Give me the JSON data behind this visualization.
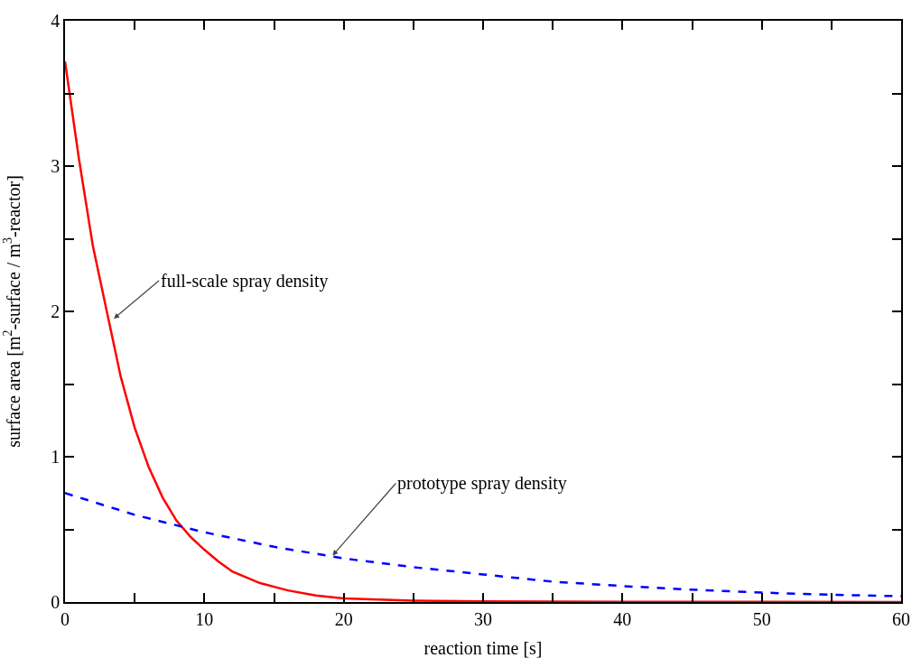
{
  "chart_data": {
    "type": "line",
    "xlabel": "reaction time [s]",
    "ylabel": "surface area [m$^{2}$-surface / m$^{3}$-reactor]",
    "xlim": [
      0,
      60
    ],
    "ylim": [
      0,
      4
    ],
    "xticks": [
      0,
      {
        "value": 5,
        "label": null
      },
      10,
      {
        "value": 15,
        "label": null
      },
      20,
      {
        "value": 25,
        "label": null
      },
      30,
      {
        "value": 35,
        "label": null
      },
      40,
      {
        "value": 45,
        "label": null
      },
      50,
      {
        "value": 55,
        "label": null
      },
      60
    ],
    "yticks": [
      0,
      {
        "value": 0.5,
        "label": null
      },
      1,
      {
        "value": 1.5,
        "label": null
      },
      2,
      {
        "value": 2.5,
        "label": null
      },
      3,
      {
        "value": 3.5,
        "label": null
      },
      4
    ],
    "grid": false,
    "marker": "none",
    "series": [
      {
        "color": "#ff0000",
        "line_style": "solid",
        "x": [
          0,
          1,
          2,
          3,
          4,
          5,
          6,
          7,
          8,
          9,
          10,
          11,
          12,
          14,
          16,
          18,
          20,
          25,
          30,
          40,
          50,
          60
        ],
        "values": [
          3.72,
          3.05,
          2.45,
          2.0,
          1.55,
          1.2,
          0.93,
          0.72,
          0.56,
          0.45,
          0.36,
          0.28,
          0.21,
          0.13,
          0.08,
          0.045,
          0.025,
          0.01,
          0.005,
          0.002,
          0.001,
          0
        ]
      },
      {
        "color": "#0000ff",
        "line_style": "dashed",
        "x": [
          0,
          5,
          10,
          15,
          20,
          25,
          30,
          35,
          40,
          45,
          50,
          55,
          60
        ],
        "values": [
          0.75,
          0.6,
          0.48,
          0.38,
          0.3,
          0.24,
          0.19,
          0.14,
          0.11,
          0.085,
          0.065,
          0.05,
          0.04
        ]
      }
    ],
    "annotations": [
      {
        "text": "full-scale spray density",
        "x": 3.5,
        "y": 1.95
      },
      {
        "text": "prototype spray density",
        "x": 19.2,
        "y": 0.32
      }
    ]
  }
}
